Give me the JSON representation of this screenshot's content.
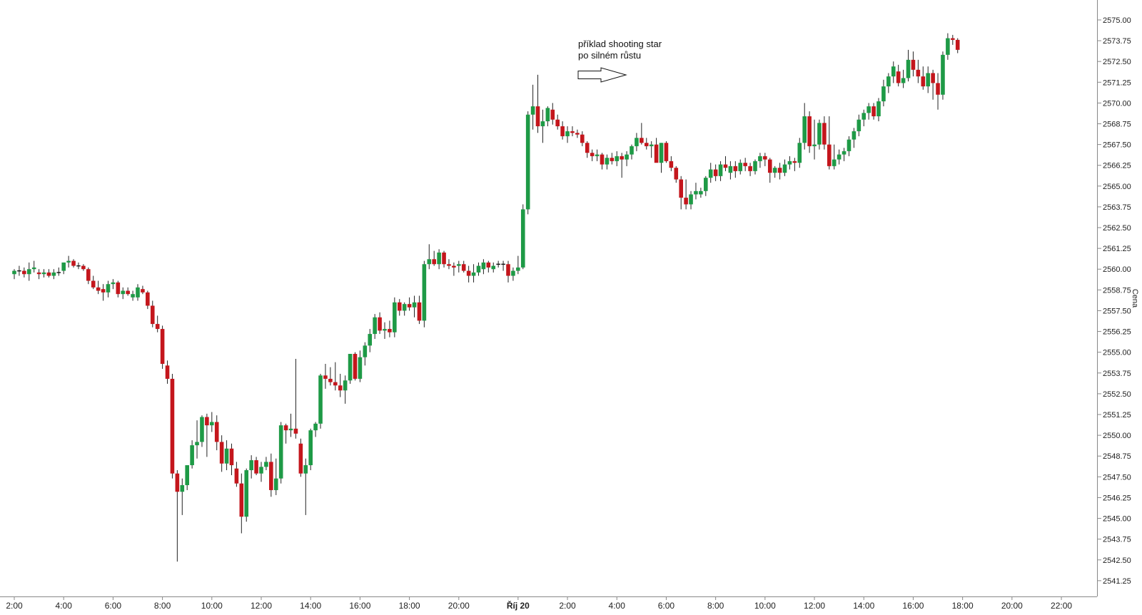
{
  "chart_data": {
    "type": "candlestick",
    "ylabel": "Cena",
    "ylim": [
      2540.3,
      2576.2
    ],
    "grid": false,
    "colors": {
      "up": "#1e9a46",
      "down": "#c4161c",
      "wick": "#222222",
      "axis": "#888888",
      "text": "#222222"
    },
    "y_ticks": [
      "2541.25",
      "2542.50",
      "2543.75",
      "2545.00",
      "2546.25",
      "2547.50",
      "2548.75",
      "2550.00",
      "2551.25",
      "2552.50",
      "2553.75",
      "2555.00",
      "2556.25",
      "2557.50",
      "2558.75",
      "2560.00",
      "2561.25",
      "2562.50",
      "2563.75",
      "2565.00",
      "2566.25",
      "2567.50",
      "2568.75",
      "2570.00",
      "2571.25",
      "2572.50",
      "2573.75",
      "2575.00"
    ],
    "x_ticks": [
      {
        "label": "2:00",
        "bar": 0,
        "bold": false
      },
      {
        "label": "4:00",
        "bar": 10,
        "bold": false
      },
      {
        "label": "6:00",
        "bar": 20,
        "bold": false
      },
      {
        "label": "8:00",
        "bar": 30,
        "bold": false
      },
      {
        "label": "10:00",
        "bar": 40,
        "bold": false
      },
      {
        "label": "12:00",
        "bar": 50,
        "bold": false
      },
      {
        "label": "14:00",
        "bar": 60,
        "bold": false
      },
      {
        "label": "16:00",
        "bar": 70,
        "bold": false
      },
      {
        "label": "18:00",
        "bar": 80,
        "bold": false
      },
      {
        "label": "20:00",
        "bar": 90,
        "bold": false
      },
      {
        "label": "Říj 20",
        "bar": 102,
        "bold": true
      },
      {
        "label": "2:00",
        "bar": 112,
        "bold": false
      },
      {
        "label": "4:00",
        "bar": 122,
        "bold": false
      },
      {
        "label": "6:00",
        "bar": 132,
        "bold": false
      },
      {
        "label": "8:00",
        "bar": 142,
        "bold": false
      },
      {
        "label": "10:00",
        "bar": 152,
        "bold": false
      },
      {
        "label": "12:00",
        "bar": 162,
        "bold": false
      },
      {
        "label": "14:00",
        "bar": 172,
        "bold": false
      },
      {
        "label": "16:00",
        "bar": 182,
        "bold": false
      },
      {
        "label": "18:00",
        "bar": 192,
        "bold": false
      },
      {
        "label": "20:00",
        "bar": 202,
        "bold": false
      },
      {
        "label": "22:00",
        "bar": 212,
        "bold": false
      }
    ],
    "annotation": {
      "lines": [
        "příklad shooting star",
        "po silném růstu"
      ],
      "bar": 123
    },
    "candles": [
      [
        2559.7,
        2560.0,
        2559.4,
        2559.9
      ],
      [
        2559.9,
        2560.2,
        2559.6,
        2559.9
      ],
      [
        2559.9,
        2560.1,
        2559.5,
        2559.7
      ],
      [
        2559.7,
        2560.4,
        2559.3,
        2560.0
      ],
      [
        2560.0,
        2560.5,
        2559.8,
        2560.1
      ],
      [
        2559.8,
        2560.0,
        2559.4,
        2559.7
      ],
      [
        2559.7,
        2560.0,
        2559.5,
        2559.8
      ],
      [
        2559.8,
        2560.0,
        2559.5,
        2559.6
      ],
      [
        2559.6,
        2560.0,
        2559.4,
        2559.8
      ],
      [
        2559.8,
        2560.1,
        2559.6,
        2559.8
      ],
      [
        2559.9,
        2560.4,
        2559.7,
        2560.4
      ],
      [
        2560.4,
        2560.8,
        2560.1,
        2560.5
      ],
      [
        2560.5,
        2560.6,
        2560.1,
        2560.2
      ],
      [
        2560.2,
        2560.4,
        2560.0,
        2560.2
      ],
      [
        2560.2,
        2560.3,
        2559.9,
        2560.0
      ],
      [
        2560.0,
        2560.1,
        2559.1,
        2559.3
      ],
      [
        2559.3,
        2559.6,
        2558.8,
        2558.9
      ],
      [
        2558.9,
        2559.3,
        2558.5,
        2558.7
      ],
      [
        2558.8,
        2559.1,
        2558.1,
        2558.6
      ],
      [
        2558.6,
        2559.3,
        2558.3,
        2559.1
      ],
      [
        2559.1,
        2559.4,
        2558.8,
        2559.2
      ],
      [
        2559.2,
        2559.3,
        2558.3,
        2558.5
      ],
      [
        2558.5,
        2558.9,
        2558.2,
        2558.7
      ],
      [
        2558.7,
        2558.9,
        2558.4,
        2558.5
      ],
      [
        2558.3,
        2558.7,
        2558.1,
        2558.5
      ],
      [
        2558.3,
        2559.1,
        2558.1,
        2558.9
      ],
      [
        2558.8,
        2559.0,
        2558.5,
        2558.6
      ],
      [
        2558.6,
        2558.7,
        2557.6,
        2557.8
      ],
      [
        2557.8,
        2558.1,
        2556.5,
        2556.7
      ],
      [
        2556.7,
        2557.2,
        2556.2,
        2556.4
      ],
      [
        2556.4,
        2556.6,
        2554.0,
        2554.3
      ],
      [
        2554.2,
        2554.5,
        2553.1,
        2553.4
      ],
      [
        2553.4,
        2553.7,
        2547.4,
        2547.7
      ],
      [
        2547.7,
        2547.9,
        2542.4,
        2546.6
      ],
      [
        2546.6,
        2547.4,
        2545.2,
        2547.0
      ],
      [
        2547.0,
        2548.2,
        2546.7,
        2548.2
      ],
      [
        2548.2,
        2549.7,
        2548.0,
        2549.4
      ],
      [
        2549.4,
        2550.9,
        2548.6,
        2549.6
      ],
      [
        2549.6,
        2551.2,
        2549.3,
        2551.1
      ],
      [
        2551.1,
        2551.3,
        2548.7,
        2550.6
      ],
      [
        2550.6,
        2551.4,
        2550.2,
        2550.8
      ],
      [
        2550.8,
        2551.2,
        2549.1,
        2549.6
      ],
      [
        2549.6,
        2550.0,
        2547.8,
        2548.3
      ],
      [
        2548.3,
        2549.7,
        2547.9,
        2549.2
      ],
      [
        2549.2,
        2549.5,
        2547.6,
        2548.2
      ],
      [
        2548.0,
        2548.4,
        2546.9,
        2547.1
      ],
      [
        2547.1,
        2547.7,
        2544.1,
        2545.1
      ],
      [
        2545.1,
        2548.0,
        2544.8,
        2547.9
      ],
      [
        2547.9,
        2548.8,
        2547.4,
        2548.5
      ],
      [
        2548.5,
        2548.7,
        2547.6,
        2547.7
      ],
      [
        2547.7,
        2548.4,
        2547.2,
        2548.1
      ],
      [
        2548.1,
        2548.7,
        2547.9,
        2548.4
      ],
      [
        2548.4,
        2548.9,
        2546.3,
        2546.7
      ],
      [
        2546.7,
        2548.6,
        2546.4,
        2547.4
      ],
      [
        2547.4,
        2550.8,
        2547.1,
        2550.6
      ],
      [
        2550.6,
        2550.7,
        2549.5,
        2550.3
      ],
      [
        2550.3,
        2551.3,
        2549.9,
        2550.4
      ],
      [
        2550.4,
        2554.6,
        2549.8,
        2550.1
      ],
      [
        2549.5,
        2549.8,
        2547.5,
        2547.7
      ],
      [
        2547.7,
        2548.6,
        2545.2,
        2548.2
      ],
      [
        2548.2,
        2550.4,
        2547.9,
        2550.3
      ],
      [
        2550.3,
        2550.8,
        2549.9,
        2550.7
      ],
      [
        2550.7,
        2553.7,
        2550.4,
        2553.6
      ],
      [
        2553.6,
        2554.3,
        2552.8,
        2553.4
      ],
      [
        2553.4,
        2554.1,
        2553.0,
        2553.2
      ],
      [
        2553.2,
        2554.4,
        2552.7,
        2553.0
      ],
      [
        2553.0,
        2553.7,
        2552.3,
        2552.7
      ],
      [
        2552.7,
        2553.6,
        2551.9,
        2553.3
      ],
      [
        2553.3,
        2554.9,
        2553.1,
        2554.9
      ],
      [
        2554.9,
        2555.0,
        2553.3,
        2553.4
      ],
      [
        2553.4,
        2555.1,
        2553.2,
        2554.7
      ],
      [
        2554.7,
        2555.6,
        2554.2,
        2555.4
      ],
      [
        2555.4,
        2556.4,
        2555.0,
        2556.1
      ],
      [
        2556.1,
        2557.3,
        2555.8,
        2557.1
      ],
      [
        2557.1,
        2557.4,
        2556.1,
        2556.3
      ],
      [
        2556.3,
        2556.8,
        2555.8,
        2556.4
      ],
      [
        2556.4,
        2556.9,
        2555.9,
        2556.2
      ],
      [
        2556.2,
        2558.3,
        2555.9,
        2558.0
      ],
      [
        2558.0,
        2558.2,
        2557.2,
        2557.5
      ],
      [
        2557.5,
        2558.0,
        2557.2,
        2557.9
      ],
      [
        2557.9,
        2558.3,
        2557.5,
        2557.7
      ],
      [
        2557.7,
        2558.4,
        2557.1,
        2558.0
      ],
      [
        2558.0,
        2558.4,
        2556.7,
        2556.9
      ],
      [
        2556.9,
        2560.5,
        2556.5,
        2560.3
      ],
      [
        2560.3,
        2561.5,
        2560.0,
        2560.6
      ],
      [
        2560.6,
        2561.1,
        2560.2,
        2560.3
      ],
      [
        2560.3,
        2561.2,
        2560.0,
        2561.0
      ],
      [
        2561.0,
        2561.1,
        2560.1,
        2560.3
      ],
      [
        2560.3,
        2560.6,
        2560.0,
        2560.2
      ],
      [
        2560.2,
        2560.4,
        2559.6,
        2560.1
      ],
      [
        2560.2,
        2560.5,
        2559.8,
        2560.3
      ],
      [
        2560.3,
        2560.5,
        2559.8,
        2559.9
      ],
      [
        2559.9,
        2560.2,
        2559.2,
        2559.6
      ],
      [
        2559.6,
        2560.3,
        2559.2,
        2559.8
      ],
      [
        2559.8,
        2560.4,
        2559.6,
        2560.2
      ],
      [
        2560.0,
        2560.6,
        2559.7,
        2560.4
      ],
      [
        2560.4,
        2560.5,
        2559.8,
        2560.1
      ],
      [
        2560.0,
        2560.4,
        2559.8,
        2560.2
      ],
      [
        2560.3,
        2560.5,
        2560.1,
        2560.3
      ],
      [
        2560.3,
        2560.5,
        2559.9,
        2560.3
      ],
      [
        2560.3,
        2560.5,
        2559.2,
        2559.6
      ],
      [
        2559.6,
        2560.1,
        2559.3,
        2559.9
      ],
      [
        2559.9,
        2560.8,
        2559.7,
        2560.1
      ],
      [
        2560.1,
        2563.9,
        2560.0,
        2563.6
      ],
      [
        2563.6,
        2569.5,
        2563.3,
        2569.3
      ],
      [
        2569.3,
        2571.1,
        2568.4,
        2569.8
      ],
      [
        2569.8,
        2571.7,
        2568.2,
        2568.6
      ],
      [
        2568.6,
        2569.6,
        2567.6,
        2568.9
      ],
      [
        2568.9,
        2569.8,
        2568.6,
        2569.7
      ],
      [
        2569.6,
        2570.0,
        2568.7,
        2569.0
      ],
      [
        2569.0,
        2569.3,
        2568.4,
        2568.6
      ],
      [
        2568.6,
        2568.9,
        2567.8,
        2568.0
      ],
      [
        2568.0,
        2568.6,
        2567.6,
        2568.3
      ],
      [
        2568.3,
        2568.6,
        2568.0,
        2568.2
      ],
      [
        2568.2,
        2568.4,
        2567.9,
        2568.1
      ],
      [
        2568.1,
        2568.3,
        2567.4,
        2567.6
      ],
      [
        2567.6,
        2567.7,
        2566.7,
        2567.0
      ],
      [
        2567.0,
        2567.2,
        2566.5,
        2566.8
      ],
      [
        2566.8,
        2567.2,
        2566.5,
        2566.9
      ],
      [
        2566.9,
        2567.0,
        2566.0,
        2566.3
      ],
      [
        2566.3,
        2566.9,
        2566.0,
        2566.7
      ],
      [
        2566.7,
        2567.0,
        2566.3,
        2566.5
      ],
      [
        2566.5,
        2567.1,
        2566.2,
        2566.8
      ],
      [
        2566.8,
        2567.0,
        2565.5,
        2566.6
      ],
      [
        2566.6,
        2567.1,
        2566.2,
        2566.9
      ],
      [
        2566.9,
        2567.5,
        2566.6,
        2567.4
      ],
      [
        2567.4,
        2568.2,
        2567.1,
        2567.9
      ],
      [
        2567.9,
        2568.8,
        2567.5,
        2567.6
      ],
      [
        2567.6,
        2567.9,
        2567.2,
        2567.4
      ],
      [
        2567.4,
        2567.7,
        2566.7,
        2567.5
      ],
      [
        2567.5,
        2567.9,
        2566.6,
        2566.4
      ],
      [
        2566.4,
        2567.6,
        2565.8,
        2567.6
      ],
      [
        2567.6,
        2567.7,
        2566.4,
        2566.5
      ],
      [
        2566.5,
        2566.8,
        2565.9,
        2566.1
      ],
      [
        2566.1,
        2566.2,
        2565.2,
        2565.4
      ],
      [
        2565.4,
        2565.6,
        2563.6,
        2564.3
      ],
      [
        2564.3,
        2565.4,
        2563.6,
        2563.9
      ],
      [
        2563.9,
        2564.7,
        2563.6,
        2564.5
      ],
      [
        2564.5,
        2565.2,
        2564.2,
        2564.7
      ],
      [
        2564.5,
        2564.9,
        2564.3,
        2564.7
      ],
      [
        2564.7,
        2565.6,
        2564.4,
        2565.5
      ],
      [
        2565.5,
        2566.4,
        2565.2,
        2566.0
      ],
      [
        2566.0,
        2566.3,
        2565.3,
        2565.6
      ],
      [
        2565.6,
        2566.5,
        2565.3,
        2566.3
      ],
      [
        2566.3,
        2566.8,
        2565.9,
        2566.1
      ],
      [
        2565.8,
        2566.5,
        2565.4,
        2566.2
      ],
      [
        2566.2,
        2566.5,
        2565.5,
        2565.9
      ],
      [
        2565.9,
        2566.6,
        2565.7,
        2566.4
      ],
      [
        2566.4,
        2566.7,
        2565.9,
        2566.2
      ],
      [
        2566.2,
        2566.4,
        2565.6,
        2565.9
      ],
      [
        2565.9,
        2566.6,
        2565.7,
        2566.5
      ],
      [
        2566.5,
        2567.0,
        2566.1,
        2566.8
      ],
      [
        2566.8,
        2567.0,
        2566.2,
        2566.6
      ],
      [
        2566.6,
        2566.7,
        2565.2,
        2565.8
      ],
      [
        2565.8,
        2566.2,
        2565.5,
        2566.1
      ],
      [
        2566.1,
        2566.4,
        2565.4,
        2565.8
      ],
      [
        2565.8,
        2566.6,
        2565.6,
        2566.3
      ],
      [
        2566.3,
        2566.8,
        2566.0,
        2566.5
      ],
      [
        2566.5,
        2566.7,
        2565.9,
        2566.4
      ],
      [
        2566.4,
        2567.9,
        2566.1,
        2567.6
      ],
      [
        2567.6,
        2570.0,
        2567.2,
        2569.2
      ],
      [
        2569.2,
        2569.5,
        2567.0,
        2567.4
      ],
      [
        2567.4,
        2569.0,
        2566.6,
        2567.5
      ],
      [
        2567.5,
        2569.0,
        2567.2,
        2568.8
      ],
      [
        2568.8,
        2569.2,
        2567.2,
        2567.5
      ],
      [
        2567.5,
        2569.2,
        2566.0,
        2566.2
      ],
      [
        2566.2,
        2567.5,
        2566.0,
        2566.6
      ],
      [
        2566.6,
        2567.2,
        2566.3,
        2566.9
      ],
      [
        2566.9,
        2567.3,
        2566.5,
        2567.1
      ],
      [
        2567.1,
        2568.0,
        2566.8,
        2567.8
      ],
      [
        2567.8,
        2568.5,
        2567.3,
        2568.3
      ],
      [
        2568.3,
        2569.3,
        2568.0,
        2569.0
      ],
      [
        2569.0,
        2569.6,
        2568.6,
        2569.4
      ],
      [
        2569.4,
        2570.0,
        2569.0,
        2569.8
      ],
      [
        2569.8,
        2570.0,
        2569.0,
        2569.2
      ],
      [
        2569.2,
        2570.3,
        2568.9,
        2570.1
      ],
      [
        2570.1,
        2571.4,
        2569.8,
        2571.0
      ],
      [
        2571.0,
        2571.8,
        2570.6,
        2571.6
      ],
      [
        2571.6,
        2572.5,
        2571.2,
        2572.2
      ],
      [
        2571.9,
        2572.3,
        2571.0,
        2571.2
      ],
      [
        2571.2,
        2572.0,
        2570.9,
        2571.5
      ],
      [
        2571.5,
        2573.2,
        2571.3,
        2572.6
      ],
      [
        2572.6,
        2573.1,
        2571.6,
        2572.0
      ],
      [
        2572.0,
        2572.6,
        2571.2,
        2571.6
      ],
      [
        2571.6,
        2572.2,
        2570.8,
        2571.0
      ],
      [
        2571.0,
        2572.2,
        2570.6,
        2571.8
      ],
      [
        2571.8,
        2572.0,
        2570.2,
        2571.2
      ],
      [
        2571.2,
        2571.8,
        2569.6,
        2570.5
      ],
      [
        2570.5,
        2573.1,
        2570.2,
        2572.9
      ],
      [
        2572.9,
        2574.2,
        2572.6,
        2573.9
      ],
      [
        2573.9,
        2574.1,
        2573.5,
        2573.8
      ],
      [
        2573.8,
        2573.9,
        2573.0,
        2573.2
      ]
    ]
  }
}
